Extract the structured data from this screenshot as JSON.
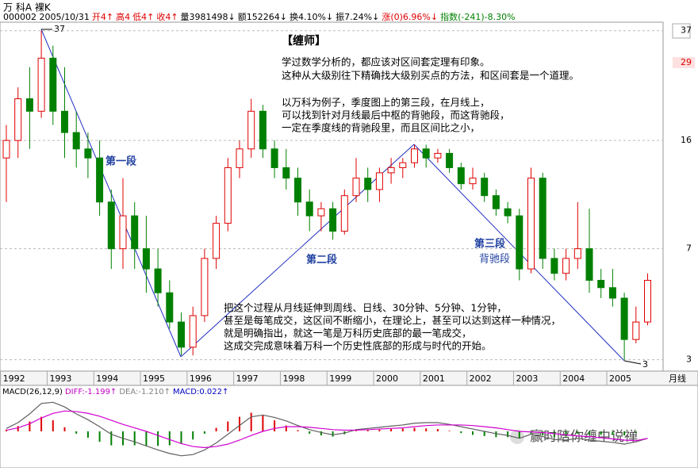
{
  "chart_data": {
    "type": "candlestick",
    "title": "万 科A 裸K",
    "header": [
      {
        "text": "000002 2005/10/31",
        "color": "#000000"
      },
      {
        "text": "开4↑",
        "color": "#e00000"
      },
      {
        "text": "高4 ",
        "color": "#e00000"
      },
      {
        "text": "低4↑",
        "color": "#e00000"
      },
      {
        "text": "收4↑",
        "color": "#e00000"
      },
      {
        "text": "量3981498↓",
        "color": "#000000"
      },
      {
        "text": "额152264↓",
        "color": "#000000"
      },
      {
        "text": "换4.10%↓",
        "color": "#000000"
      },
      {
        "text": "振7.24%↓",
        "color": "#000000"
      },
      {
        "text": "涨(0)6.96%↓",
        "color": "#e00000"
      },
      {
        "text": "指数(-241)-8.30%",
        "color": "#008000"
      }
    ],
    "x_labels": [
      "1992",
      "1993",
      "1994",
      "1995",
      "1996",
      "1997",
      "1998",
      "1999",
      "2000",
      "2001",
      "2002",
      "2003",
      "2004",
      "2005"
    ],
    "period_label": "月线",
    "log_scale": true,
    "ylim": [
      2.8,
      39
    ],
    "yticks": [
      3,
      7,
      16,
      37
    ],
    "price_marker": 29,
    "grid": true,
    "up_color": "#e00000",
    "down_color": "#008000",
    "candles": [
      [
        14,
        18,
        10,
        16
      ],
      [
        16,
        24,
        14,
        22
      ],
      [
        22,
        28,
        15,
        20
      ],
      [
        20,
        37,
        19,
        30
      ],
      [
        30,
        33,
        18,
        20
      ],
      [
        20,
        28,
        14,
        17
      ],
      [
        17,
        20,
        13,
        15
      ],
      [
        15,
        17,
        12,
        14
      ],
      [
        14,
        16,
        9,
        10
      ],
      [
        10,
        11,
        6,
        7
      ],
      [
        7,
        12,
        6,
        9
      ],
      [
        9,
        10,
        6,
        7
      ],
      [
        7,
        9,
        5,
        6
      ],
      [
        6,
        7,
        4.5,
        5
      ],
      [
        5,
        5.5,
        3.8,
        4
      ],
      [
        4,
        4.3,
        3.1,
        3.3
      ],
      [
        3.3,
        4.5,
        3.1,
        4.2
      ],
      [
        4.2,
        7,
        4,
        6.5
      ],
      [
        6.5,
        9,
        6,
        8.5
      ],
      [
        8.5,
        14,
        8,
        13
      ],
      [
        13,
        16,
        12,
        15
      ],
      [
        15,
        22,
        14,
        20
      ],
      [
        20,
        21,
        14,
        15
      ],
      [
        15,
        16,
        12,
        13
      ],
      [
        13,
        15,
        11,
        12
      ],
      [
        12,
        13,
        9,
        10
      ],
      [
        10,
        11,
        8,
        9
      ],
      [
        9,
        10,
        8,
        9.5
      ],
      [
        9.5,
        10,
        7.5,
        8
      ],
      [
        8,
        11,
        7.8,
        10.5
      ],
      [
        10.5,
        14,
        10,
        12
      ],
      [
        12,
        13,
        10,
        11
      ],
      [
        11,
        13,
        10,
        12.5
      ],
      [
        12.5,
        14,
        11.5,
        13
      ],
      [
        13,
        14,
        12,
        13.5
      ],
      [
        13.5,
        15.5,
        13,
        15
      ],
      [
        15,
        15.5,
        13,
        14
      ],
      [
        14,
        15,
        13.5,
        14.5
      ],
      [
        14.5,
        15,
        12.5,
        13
      ],
      [
        13,
        13.5,
        11,
        11.5
      ],
      [
        11.5,
        13,
        11,
        12
      ],
      [
        12,
        12.5,
        10,
        10.5
      ],
      [
        10.5,
        11,
        9,
        9.5
      ],
      [
        9.5,
        10,
        8.5,
        9
      ],
      [
        9,
        9.5,
        5.5,
        6
      ],
      [
        6,
        13,
        5.8,
        12
      ],
      [
        12,
        12.5,
        6,
        6.5
      ],
      [
        6.5,
        7,
        5.5,
        5.8
      ],
      [
        5.8,
        7,
        5.5,
        6.5
      ],
      [
        6.5,
        10,
        6,
        7
      ],
      [
        7,
        9.5,
        5,
        5.5
      ],
      [
        5.5,
        6,
        4.8,
        5.2
      ],
      [
        5.2,
        6,
        4.5,
        4.8
      ],
      [
        4.8,
        5,
        3,
        3.5
      ],
      [
        3.5,
        4.5,
        3.4,
        4
      ],
      [
        4,
        5.8,
        3.9,
        5.5
      ]
    ],
    "annotations": {
      "heading": "【缠师】",
      "top": [
        "学过数学分析的，都应该对区间套定理有印象。",
        "这种从大级别往下精确找大级别买点的方法，和区间套是一个道理。"
      ],
      "middle": [
        "以万科为例子，季度图上的第三段，在月线上，",
        "可以找到针对月线最后中枢的背驰段，而这背驰段，",
        "一定在季度线的背驰段里，而且区间比之小，"
      ],
      "bottom": [
        "把这个过程从月线延伸到周线、日线、30分钟、5分钟、1分钟，",
        "甚至是每笔成交，这区间不断缩小，在理论上，甚至可以达到这样一种情况，",
        "就是明确指出，就这一笔是万科历史底部的最一笔成交，",
        "这成交完成意味着万科一个历史性底部的形成与时代的开始。"
      ],
      "seg1": "第一段",
      "seg2": "第二段",
      "seg3": "第三段",
      "seg3b": "背驰段"
    },
    "macd": {
      "header": [
        {
          "text": "MACD(26,12,9)",
          "color": "#000000"
        },
        {
          "text": "DIFF:-1.199↑",
          "color": "#c000c0"
        },
        {
          "text": "DEA:-1.210↑",
          "color": "#808080"
        },
        {
          "text": "MACD:0.022↑",
          "color": "#0000c0"
        }
      ],
      "ylim": [
        -6,
        6
      ],
      "series": [
        {
          "name": "DIFF",
          "color": "#606060",
          "values": [
            0.5,
            1.5,
            3,
            4.8,
            5,
            4.2,
            3,
            2,
            0.8,
            -0.5,
            -1.2,
            -1.8,
            -2.5,
            -3.2,
            -3.8,
            -4.2,
            -4,
            -3.2,
            -2,
            -0.5,
            1,
            2.5,
            2.8,
            2.4,
            1.8,
            1,
            0.3,
            -0.2,
            -0.6,
            -0.3,
            0.3,
            0.5,
            0.7,
            0.9,
            1.1,
            1.4,
            1.5,
            1.5,
            1.2,
            0.8,
            0.4,
            0,
            -0.4,
            -0.7,
            -1.2,
            -0.5,
            -0.9,
            -1.4,
            -1.5,
            -1.2,
            -1.5,
            -1.7,
            -1.9,
            -2.2,
            -1.8,
            -1.199
          ]
        },
        {
          "name": "DEA",
          "color": "#d000d0",
          "values": [
            0.2,
            0.6,
            1.3,
            2.3,
            3.1,
            3.5,
            3.4,
            3.1,
            2.6,
            1.9,
            1.2,
            0.6,
            0,
            -0.7,
            -1.4,
            -2.1,
            -2.6,
            -2.8,
            -2.6,
            -2.2,
            -1.5,
            -0.7,
            0,
            0.5,
            0.8,
            0.8,
            0.7,
            0.5,
            0.3,
            0.2,
            0.2,
            0.3,
            0.4,
            0.5,
            0.6,
            0.8,
            1,
            1.1,
            1.1,
            1.1,
            1,
            0.8,
            0.6,
            0.3,
            0,
            -0.1,
            -0.2,
            -0.4,
            -0.6,
            -0.8,
            -0.9,
            -1.1,
            -1.3,
            -1.5,
            -1.6,
            -1.21
          ]
        }
      ]
    },
    "watermark": "赢时陪你缠中说禅"
  }
}
